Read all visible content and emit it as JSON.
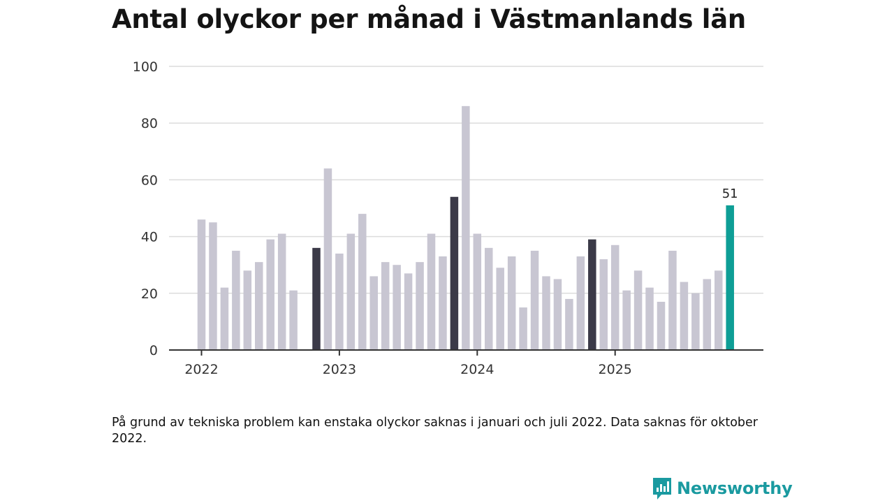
{
  "title": "Antal olyckor per månad i Västmanlands län",
  "note": "På grund av tekniska problem kan enstaka olyckor saknas i januari och juli 2022. Data saknas för oktober 2022.",
  "brand": {
    "name": "Newsworthy",
    "color": "#1a9aa0",
    "icon": "newsworthy-logo-icon"
  },
  "colors": {
    "default_bar": "#c8c6d2",
    "highlight_bar": "#3b3a48",
    "latest_bar": "#0e9e96",
    "grid": "#dcdcdc",
    "axis": "#333333"
  },
  "chart_data": {
    "type": "bar",
    "title": "Antal olyckor per månad i Västmanlands län",
    "xlabel": "",
    "ylabel": "",
    "ylim": [
      0,
      100
    ],
    "yticks": [
      0,
      20,
      40,
      60,
      80,
      100
    ],
    "grid": true,
    "x_tick_labels": [
      {
        "label": "2022",
        "month_index": 0
      },
      {
        "label": "2023",
        "month_index": 12
      },
      {
        "label": "2024",
        "month_index": 24
      },
      {
        "label": "2025",
        "month_index": 36
      }
    ],
    "months": [
      "2022-01",
      "2022-02",
      "2022-03",
      "2022-04",
      "2022-05",
      "2022-06",
      "2022-07",
      "2022-08",
      "2022-09",
      "2022-10",
      "2022-11",
      "2022-12",
      "2023-01",
      "2023-02",
      "2023-03",
      "2023-04",
      "2023-05",
      "2023-06",
      "2023-07",
      "2023-08",
      "2023-09",
      "2023-10",
      "2023-11",
      "2023-12",
      "2024-01",
      "2024-02",
      "2024-03",
      "2024-04",
      "2024-05",
      "2024-06",
      "2024-07",
      "2024-08",
      "2024-09",
      "2024-10",
      "2024-11",
      "2024-12",
      "2025-01",
      "2025-02",
      "2025-03",
      "2025-04",
      "2025-05",
      "2025-06",
      "2025-07",
      "2025-08",
      "2025-09",
      "2025-10",
      "2025-11"
    ],
    "values": [
      46,
      45,
      22,
      35,
      28,
      31,
      39,
      41,
      21,
      null,
      36,
      64,
      34,
      41,
      48,
      26,
      31,
      30,
      27,
      31,
      41,
      33,
      54,
      86,
      41,
      36,
      29,
      33,
      15,
      35,
      26,
      25,
      18,
      33,
      39,
      32,
      37,
      21,
      28,
      22,
      17,
      35,
      24,
      20,
      25,
      28,
      51
    ],
    "highlight_months": [
      "2022-11",
      "2023-11",
      "2024-11"
    ],
    "latest_month": "2025-11",
    "data_labels": [
      {
        "month": "2025-11",
        "text": "51"
      }
    ]
  }
}
